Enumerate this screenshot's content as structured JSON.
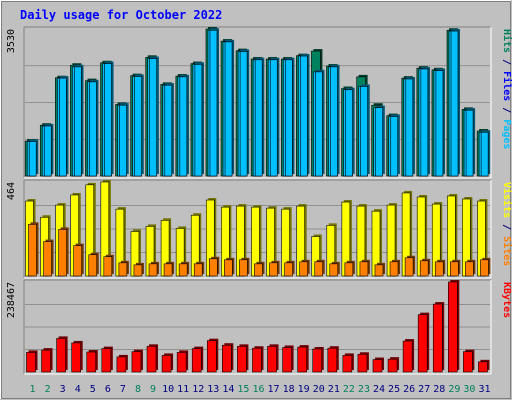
{
  "chart_data": {
    "type": "bar",
    "title": "Daily usage for October 2022",
    "categories": [
      "1",
      "2",
      "3",
      "4",
      "5",
      "6",
      "7",
      "8",
      "9",
      "10",
      "11",
      "12",
      "13",
      "14",
      "15",
      "16",
      "17",
      "18",
      "19",
      "20",
      "21",
      "22",
      "23",
      "24",
      "25",
      "26",
      "27",
      "28",
      "29",
      "30",
      "31"
    ],
    "weekend_days": [
      "1",
      "2",
      "8",
      "9",
      "15",
      "16",
      "22",
      "23",
      "29",
      "30"
    ],
    "panels": [
      {
        "name": "top",
        "max_label": "3530",
        "ylim": [
          0,
          3530
        ],
        "right_label": [
          {
            "text": "Hits",
            "color": "#00805c"
          },
          {
            "text": " / ",
            "color": "#000080"
          },
          {
            "text": "Files",
            "color": "#0000ff"
          },
          {
            "text": " / ",
            "color": "#000080"
          },
          {
            "text": "Pages",
            "color": "#00c0ff"
          }
        ],
        "series": [
          {
            "name": "Hits",
            "color": "#00805c",
            "values": [
              840,
              1220,
              2360,
              2660,
              2290,
              2720,
              1720,
              2410,
              2850,
              2200,
              2400,
              2700,
              3530,
              3240,
              3010,
              2810,
              2810,
              2810,
              2890,
              3000,
              2640,
              2100,
              2380,
              1700,
              1450,
              2350,
              2590,
              2550,
              3500,
              1600,
              1080
            ]
          },
          {
            "name": "Files",
            "color": "#00c0ff",
            "values": [
              830,
              1200,
              2350,
              2620,
              2260,
              2700,
              1700,
              2390,
              2820,
              2180,
              2380,
              2680,
              3500,
              3220,
              2990,
              2790,
              2790,
              2790,
              2880,
              2500,
              2620,
              2070,
              2150,
              1640,
              1430,
              2330,
              2570,
              2530,
              3480,
              1580,
              1050
            ]
          },
          {
            "name": "Pages",
            "color": "#00c0ff",
            "values": [
              830,
              1200,
              2350,
              2620,
              2260,
              2700,
              1700,
              2390,
              2820,
              2180,
              2380,
              2680,
              3500,
              3220,
              2990,
              2790,
              2790,
              2790,
              2880,
              2500,
              2620,
              2070,
              2150,
              1640,
              1430,
              2330,
              2570,
              2530,
              3480,
              1580,
              1050
            ]
          }
        ]
      },
      {
        "name": "middle",
        "max_label": "464",
        "ylim": [
          0,
          464
        ],
        "right_label": [
          {
            "text": "Visits",
            "color": "#ffff00"
          },
          {
            "text": " / ",
            "color": "#000080"
          },
          {
            "text": "Sites",
            "color": "#ff8000"
          }
        ],
        "series": [
          {
            "name": "Visits",
            "color": "#ffff00",
            "values": [
              370,
              290,
              350,
              400,
              450,
              464,
              330,
              220,
              245,
              275,
              235,
              300,
              375,
              340,
              345,
              340,
              335,
              330,
              345,
              195,
              250,
              365,
              345,
              320,
              350,
              410,
              390,
              355,
              395,
              380,
              370
            ]
          },
          {
            "name": "Sites",
            "color": "#ff8000",
            "values": [
              255,
              170,
              230,
              150,
              105,
              95,
              65,
              55,
              60,
              60,
              60,
              60,
              85,
              80,
              80,
              60,
              65,
              65,
              70,
              70,
              60,
              65,
              70,
              55,
              70,
              90,
              75,
              70,
              70,
              70,
              80
            ]
          }
        ]
      },
      {
        "name": "bottom",
        "max_label": "238467",
        "ylim": [
          0,
          238467
        ],
        "right_label": [
          {
            "text": "KBytes",
            "color": "#ff0000"
          }
        ],
        "series": [
          {
            "name": "KBytes",
            "color": "#ff0000",
            "values": [
              52000,
              58000,
              89000,
              77000,
              53000,
              62000,
              40000,
              54000,
              68000,
              44000,
              52000,
              62000,
              83000,
              71000,
              68000,
              63000,
              68000,
              65000,
              66000,
              61000,
              63000,
              44000,
              47000,
              33000,
              34000,
              82000,
              152000,
              180000,
              238467,
              54000,
              27000
            ]
          }
        ]
      }
    ]
  }
}
